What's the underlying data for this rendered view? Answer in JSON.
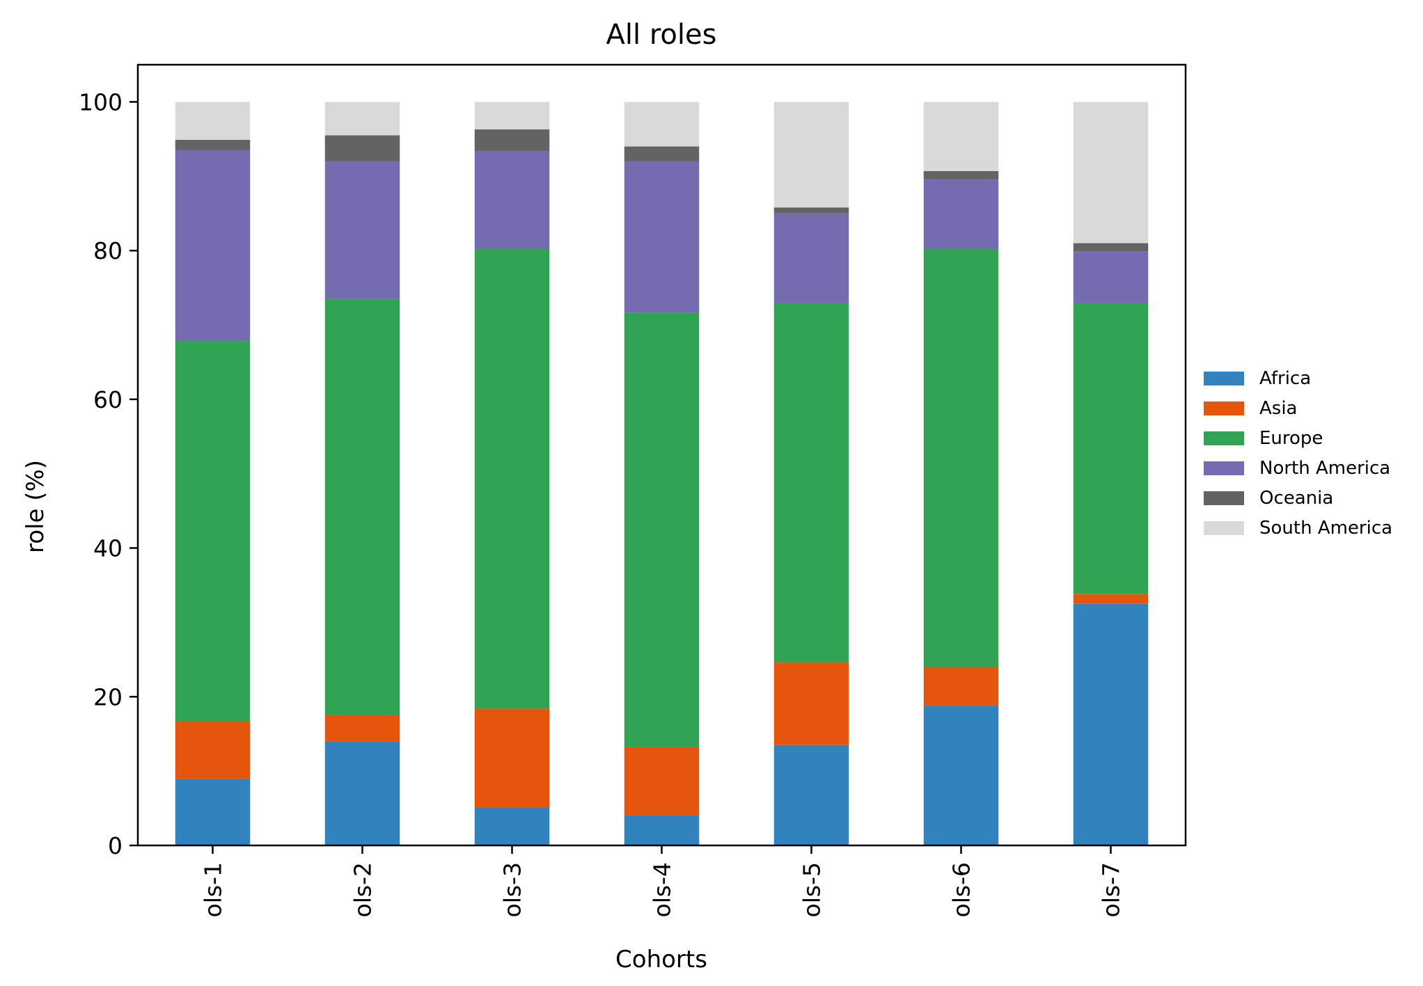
{
  "chart_data": {
    "type": "bar",
    "stacked": true,
    "title": "All roles",
    "xlabel": "Cohorts",
    "ylabel": "role (%)",
    "ylim": [
      0,
      105
    ],
    "yticks": [
      0,
      20,
      40,
      60,
      80,
      100
    ],
    "grid": false,
    "legend_position": "right",
    "categories": [
      "ols-1",
      "ols-2",
      "ols-3",
      "ols-4",
      "ols-5",
      "ols-6",
      "ols-7"
    ],
    "series": [
      {
        "name": "Africa",
        "color": "#3182bd",
        "values": [
          9.0,
          14.0,
          5.1,
          4.1,
          13.5,
          18.8,
          32.5
        ]
      },
      {
        "name": "Asia",
        "color": "#e6550d",
        "values": [
          7.7,
          3.6,
          13.3,
          9.1,
          11.1,
          5.2,
          1.3
        ]
      },
      {
        "name": "Europe",
        "color": "#31a354",
        "values": [
          51.2,
          55.9,
          61.8,
          58.5,
          48.4,
          56.2,
          39.2
        ]
      },
      {
        "name": "North America",
        "color": "#756bb1",
        "values": [
          25.6,
          18.5,
          13.2,
          20.3,
          12.0,
          9.4,
          6.9
        ]
      },
      {
        "name": "Oceania",
        "color": "#636363",
        "values": [
          1.4,
          3.5,
          2.9,
          2.0,
          0.8,
          1.1,
          1.1
        ]
      },
      {
        "name": "South America",
        "color": "#d9d9d9",
        "values": [
          5.1,
          4.5,
          3.7,
          6.0,
          14.2,
          9.3,
          19.0
        ]
      }
    ]
  }
}
